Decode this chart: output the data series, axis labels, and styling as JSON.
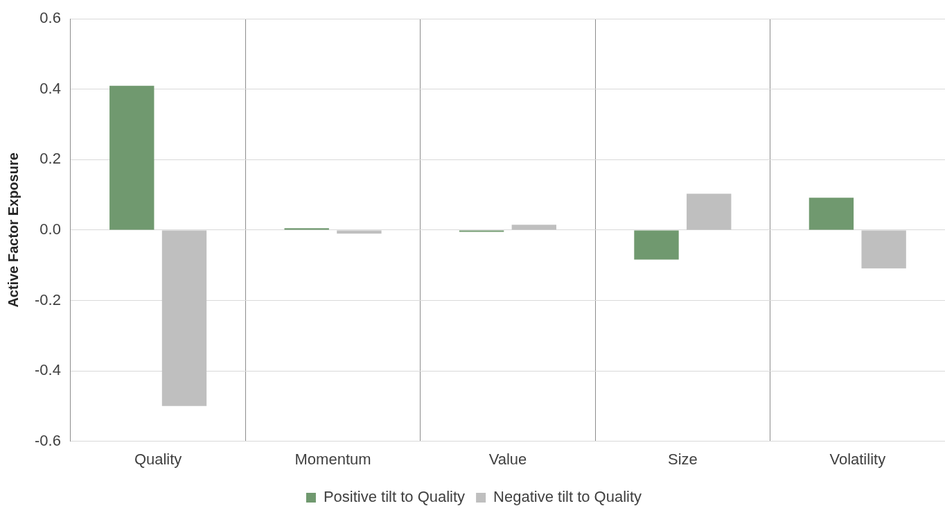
{
  "chart_data": {
    "type": "bar",
    "ylabel": "Active Factor Exposure",
    "categories": [
      "Quality",
      "Momentum",
      "Value",
      "Size",
      "Volatility"
    ],
    "series": [
      {
        "name": "Positive tilt to Quality",
        "color": "#70996f",
        "values": [
          0.41,
          0.005,
          -0.005,
          -0.084,
          0.092
        ]
      },
      {
        "name": "Negative tilt to Quality",
        "color": "#bfbfbf",
        "values": [
          -0.5,
          -0.01,
          0.015,
          0.103,
          -0.109
        ]
      }
    ],
    "ylim": [
      -0.6,
      0.6
    ],
    "yticks": [
      {
        "value": -0.6,
        "label": "-0.6"
      },
      {
        "value": -0.4,
        "label": "-0.4"
      },
      {
        "value": -0.2,
        "label": "-0.2"
      },
      {
        "value": 0,
        "label": "0.0"
      },
      {
        "value": 0.2,
        "label": "0.2"
      },
      {
        "value": 0.4,
        "label": "0.4"
      },
      {
        "value": 0.6,
        "label": "0.6"
      }
    ],
    "grid": true,
    "legend": "bottom"
  }
}
